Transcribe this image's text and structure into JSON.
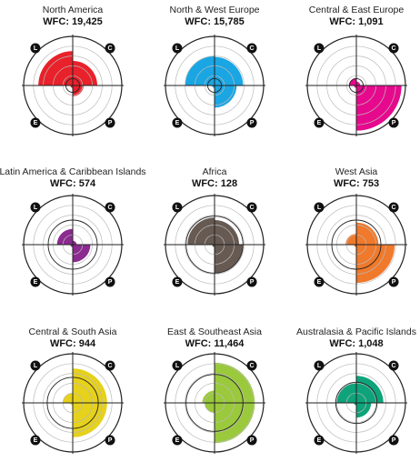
{
  "chart_data": [
    {
      "type": "polar-area",
      "title": "North America",
      "wfc_label": "WFC: 19,425",
      "color": "#e8212a",
      "quadrants": {
        "L": 0.7,
        "C": 0.5,
        "P": 0.22,
        "E": 0.05
      },
      "ring_ref": 0.14
    },
    {
      "type": "polar-area",
      "title": "North & West Europe",
      "wfc_label": "WFC: 15,785",
      "color": "#1aa6e3",
      "quadrants": {
        "L": 0.6,
        "C": 0.58,
        "P": 0.45,
        "E": 0.05
      },
      "ring_ref": 0.14
    },
    {
      "type": "polar-area",
      "title": "Central & East Europe",
      "wfc_label": "WFC: 1,091",
      "color": "#e6098d",
      "quadrants": {
        "L": 0.15,
        "C": 0.08,
        "P": 0.92,
        "E": 0.05
      },
      "ring_ref": 0.14
    },
    {
      "type": "polar-area",
      "title": "Latin America & Caribbean Islands",
      "wfc_label": "WFC: 574",
      "color": "#8b2a8f",
      "quadrants": {
        "L": 0.32,
        "C": 0.08,
        "P": 0.36,
        "E": 0.05
      },
      "ring_ref": 0.5
    },
    {
      "type": "polar-area",
      "title": "Africa",
      "wfc_label": "WFC: 128",
      "color": "#675a52",
      "quadrants": {
        "L": 0.55,
        "C": 0.5,
        "P": 0.58,
        "E": 0.05
      },
      "ring_ref": 0.58
    },
    {
      "type": "polar-area",
      "title": "West Asia",
      "wfc_label": "WFC: 753",
      "color": "#f0792b",
      "quadrants": {
        "L": 0.22,
        "C": 0.45,
        "P": 0.78,
        "E": 0.05
      },
      "ring_ref": 0.5
    },
    {
      "type": "polar-area",
      "title": "Central & South Asia",
      "wfc_label": "WFC: 944",
      "color": "#e6d11b",
      "quadrants": {
        "L": 0.2,
        "C": 0.7,
        "P": 0.7,
        "E": 0.05
      },
      "ring_ref": 0.52
    },
    {
      "type": "polar-area",
      "title": "East & Southeast Asia",
      "wfc_label": "WFC: 11,464",
      "color": "#9ac93b",
      "quadrants": {
        "L": 0.25,
        "C": 0.82,
        "P": 0.82,
        "E": 0.2
      },
      "ring_ref": 0.58
    },
    {
      "type": "polar-area",
      "title": "Australasia & Pacific Islands",
      "wfc_label": "WFC: 1,048",
      "color": "#0ea37a",
      "quadrants": {
        "L": 0.4,
        "C": 0.55,
        "P": 0.3,
        "E": 0.05
      },
      "ring_ref": 0.42
    }
  ],
  "quadrant_labels": {
    "L": "L",
    "C": "C",
    "P": "P",
    "E": "E"
  },
  "ring_count": 5
}
